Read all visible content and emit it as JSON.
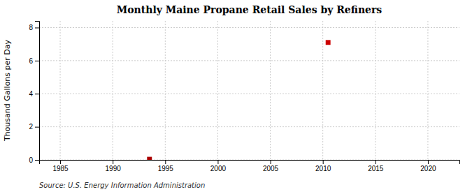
{
  "chart_data": {
    "type": "scatter",
    "title": "Monthly Maine Propane Retail Sales by Refiners",
    "y_label": "Thousand Gallons per Day",
    "annotation": "Source: U.S. Energy Information Administration",
    "x": [
      1993.5,
      2010.5
    ],
    "values": [
      0.04,
      7.1
    ],
    "colors": [
      "#aa0000",
      "#cc0000"
    ],
    "marker": "square",
    "xlim": [
      1983,
      2023
    ],
    "xticks": [
      1985,
      1990,
      1995,
      2000,
      2005,
      2010,
      2015,
      2020
    ],
    "ylim": [
      0,
      8.4
    ],
    "yticks": [
      0,
      2,
      4,
      6,
      8
    ],
    "grid": true
  }
}
